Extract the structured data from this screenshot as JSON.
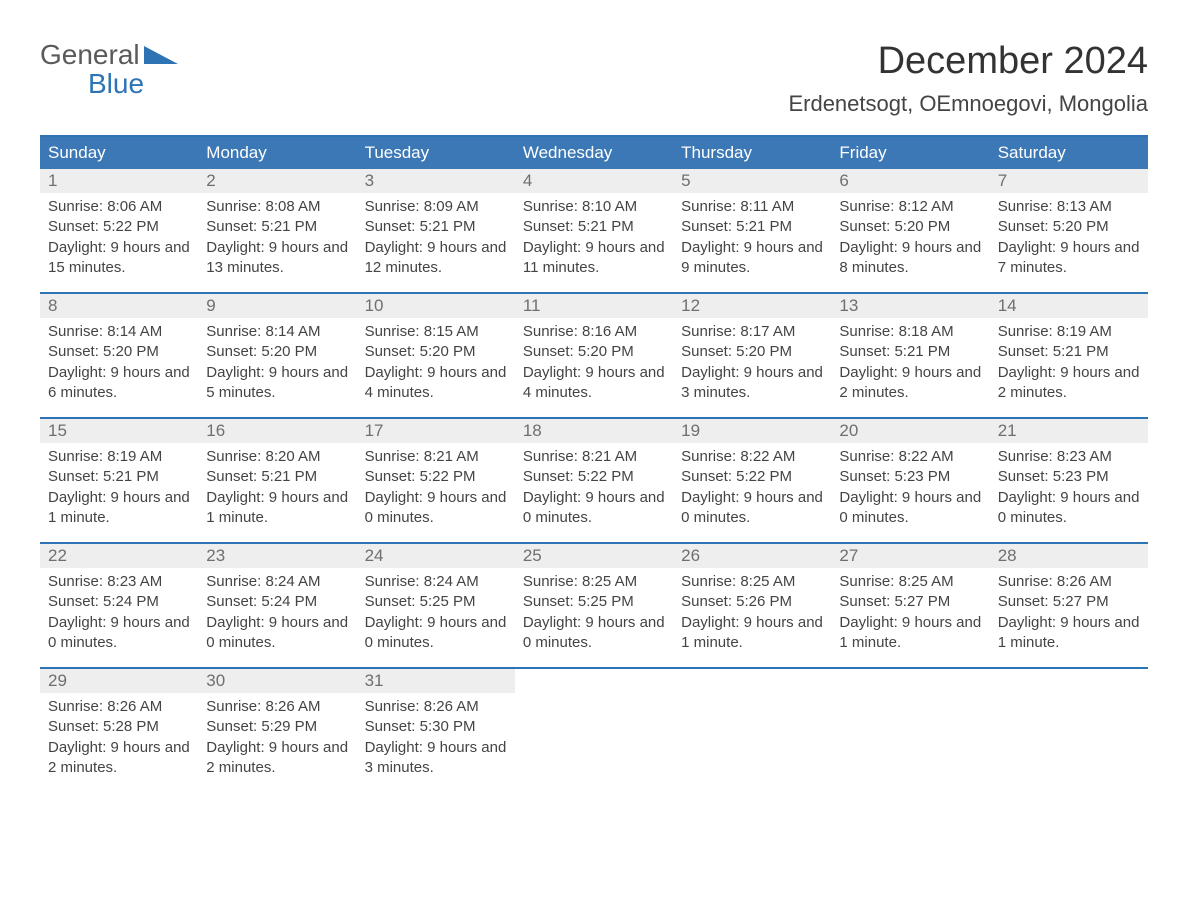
{
  "brand": {
    "line1": "General",
    "line2": "Blue"
  },
  "title": "December 2024",
  "location": "Erdenetsogt, OEmnoegovi, Mongolia",
  "colors": {
    "header_bg": "#3b78b5",
    "header_border": "#2e74b5",
    "daynum_bg": "#eeeeee",
    "text": "#444444",
    "logo_blue": "#2e74b5",
    "logo_grey": "#5a5a5a"
  },
  "day_names": [
    "Sunday",
    "Monday",
    "Tuesday",
    "Wednesday",
    "Thursday",
    "Friday",
    "Saturday"
  ],
  "weeks": [
    [
      {
        "n": "1",
        "sr": "8:06 AM",
        "ss": "5:22 PM",
        "dl": "9 hours and 15 minutes."
      },
      {
        "n": "2",
        "sr": "8:08 AM",
        "ss": "5:21 PM",
        "dl": "9 hours and 13 minutes."
      },
      {
        "n": "3",
        "sr": "8:09 AM",
        "ss": "5:21 PM",
        "dl": "9 hours and 12 minutes."
      },
      {
        "n": "4",
        "sr": "8:10 AM",
        "ss": "5:21 PM",
        "dl": "9 hours and 11 minutes."
      },
      {
        "n": "5",
        "sr": "8:11 AM",
        "ss": "5:21 PM",
        "dl": "9 hours and 9 minutes."
      },
      {
        "n": "6",
        "sr": "8:12 AM",
        "ss": "5:20 PM",
        "dl": "9 hours and 8 minutes."
      },
      {
        "n": "7",
        "sr": "8:13 AM",
        "ss": "5:20 PM",
        "dl": "9 hours and 7 minutes."
      }
    ],
    [
      {
        "n": "8",
        "sr": "8:14 AM",
        "ss": "5:20 PM",
        "dl": "9 hours and 6 minutes."
      },
      {
        "n": "9",
        "sr": "8:14 AM",
        "ss": "5:20 PM",
        "dl": "9 hours and 5 minutes."
      },
      {
        "n": "10",
        "sr": "8:15 AM",
        "ss": "5:20 PM",
        "dl": "9 hours and 4 minutes."
      },
      {
        "n": "11",
        "sr": "8:16 AM",
        "ss": "5:20 PM",
        "dl": "9 hours and 4 minutes."
      },
      {
        "n": "12",
        "sr": "8:17 AM",
        "ss": "5:20 PM",
        "dl": "9 hours and 3 minutes."
      },
      {
        "n": "13",
        "sr": "8:18 AM",
        "ss": "5:21 PM",
        "dl": "9 hours and 2 minutes."
      },
      {
        "n": "14",
        "sr": "8:19 AM",
        "ss": "5:21 PM",
        "dl": "9 hours and 2 minutes."
      }
    ],
    [
      {
        "n": "15",
        "sr": "8:19 AM",
        "ss": "5:21 PM",
        "dl": "9 hours and 1 minute."
      },
      {
        "n": "16",
        "sr": "8:20 AM",
        "ss": "5:21 PM",
        "dl": "9 hours and 1 minute."
      },
      {
        "n": "17",
        "sr": "8:21 AM",
        "ss": "5:22 PM",
        "dl": "9 hours and 0 minutes."
      },
      {
        "n": "18",
        "sr": "8:21 AM",
        "ss": "5:22 PM",
        "dl": "9 hours and 0 minutes."
      },
      {
        "n": "19",
        "sr": "8:22 AM",
        "ss": "5:22 PM",
        "dl": "9 hours and 0 minutes."
      },
      {
        "n": "20",
        "sr": "8:22 AM",
        "ss": "5:23 PM",
        "dl": "9 hours and 0 minutes."
      },
      {
        "n": "21",
        "sr": "8:23 AM",
        "ss": "5:23 PM",
        "dl": "9 hours and 0 minutes."
      }
    ],
    [
      {
        "n": "22",
        "sr": "8:23 AM",
        "ss": "5:24 PM",
        "dl": "9 hours and 0 minutes."
      },
      {
        "n": "23",
        "sr": "8:24 AM",
        "ss": "5:24 PM",
        "dl": "9 hours and 0 minutes."
      },
      {
        "n": "24",
        "sr": "8:24 AM",
        "ss": "5:25 PM",
        "dl": "9 hours and 0 minutes."
      },
      {
        "n": "25",
        "sr": "8:25 AM",
        "ss": "5:25 PM",
        "dl": "9 hours and 0 minutes."
      },
      {
        "n": "26",
        "sr": "8:25 AM",
        "ss": "5:26 PM",
        "dl": "9 hours and 1 minute."
      },
      {
        "n": "27",
        "sr": "8:25 AM",
        "ss": "5:27 PM",
        "dl": "9 hours and 1 minute."
      },
      {
        "n": "28",
        "sr": "8:26 AM",
        "ss": "5:27 PM",
        "dl": "9 hours and 1 minute."
      }
    ],
    [
      {
        "n": "29",
        "sr": "8:26 AM",
        "ss": "5:28 PM",
        "dl": "9 hours and 2 minutes."
      },
      {
        "n": "30",
        "sr": "8:26 AM",
        "ss": "5:29 PM",
        "dl": "9 hours and 2 minutes."
      },
      {
        "n": "31",
        "sr": "8:26 AM",
        "ss": "5:30 PM",
        "dl": "9 hours and 3 minutes."
      },
      null,
      null,
      null,
      null
    ]
  ],
  "labels": {
    "sunrise": "Sunrise:",
    "sunset": "Sunset:",
    "daylight": "Daylight:"
  }
}
